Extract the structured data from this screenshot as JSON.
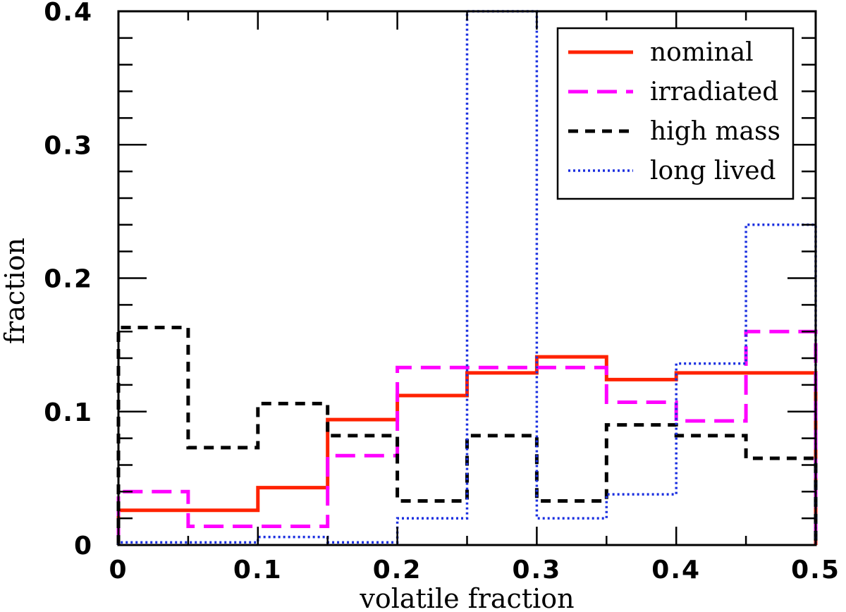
{
  "chart_data": {
    "type": "line",
    "xlabel": "volatile fraction",
    "ylabel": "fraction",
    "xlim": [
      0,
      0.5
    ],
    "ylim": [
      0,
      0.4
    ],
    "x_ticks": [
      0,
      0.1,
      0.2,
      0.3,
      0.4,
      0.5
    ],
    "x_tick_labels": [
      "0",
      "0.1",
      "0.2",
      "0.3",
      "0.4",
      "0.5"
    ],
    "y_ticks": [
      0,
      0.1,
      0.2,
      0.3,
      0.4
    ],
    "y_tick_labels": [
      "0",
      "0.1",
      "0.2",
      "0.3",
      "0.4"
    ],
    "bin_edges": [
      0,
      0.05,
      0.1,
      0.15,
      0.2,
      0.25,
      0.3,
      0.35,
      0.4,
      0.45,
      0.5
    ],
    "legend_position": "top-right",
    "series": [
      {
        "name": "nominal",
        "color": "#ff2200",
        "style": "solid",
        "values": [
          0.026,
          0.026,
          0.043,
          0.094,
          0.112,
          0.129,
          0.141,
          0.124,
          0.129,
          0.129
        ]
      },
      {
        "name": "irradiated",
        "color": "#ff00ff",
        "style": "longdash",
        "values": [
          0.04,
          0.014,
          0.014,
          0.067,
          0.133,
          0.133,
          0.133,
          0.107,
          0.093,
          0.16
        ]
      },
      {
        "name": "high mass",
        "color": "#000000",
        "style": "dash",
        "values": [
          0.163,
          0.073,
          0.106,
          0.082,
          0.033,
          0.082,
          0.033,
          0.09,
          0.082,
          0.065
        ]
      },
      {
        "name": "long lived",
        "color": "#1a2fe0",
        "style": "dot",
        "values": [
          0.002,
          0.002,
          0.006,
          0.002,
          0.02,
          0.4,
          0.02,
          0.038,
          0.136,
          0.24
        ]
      }
    ]
  }
}
